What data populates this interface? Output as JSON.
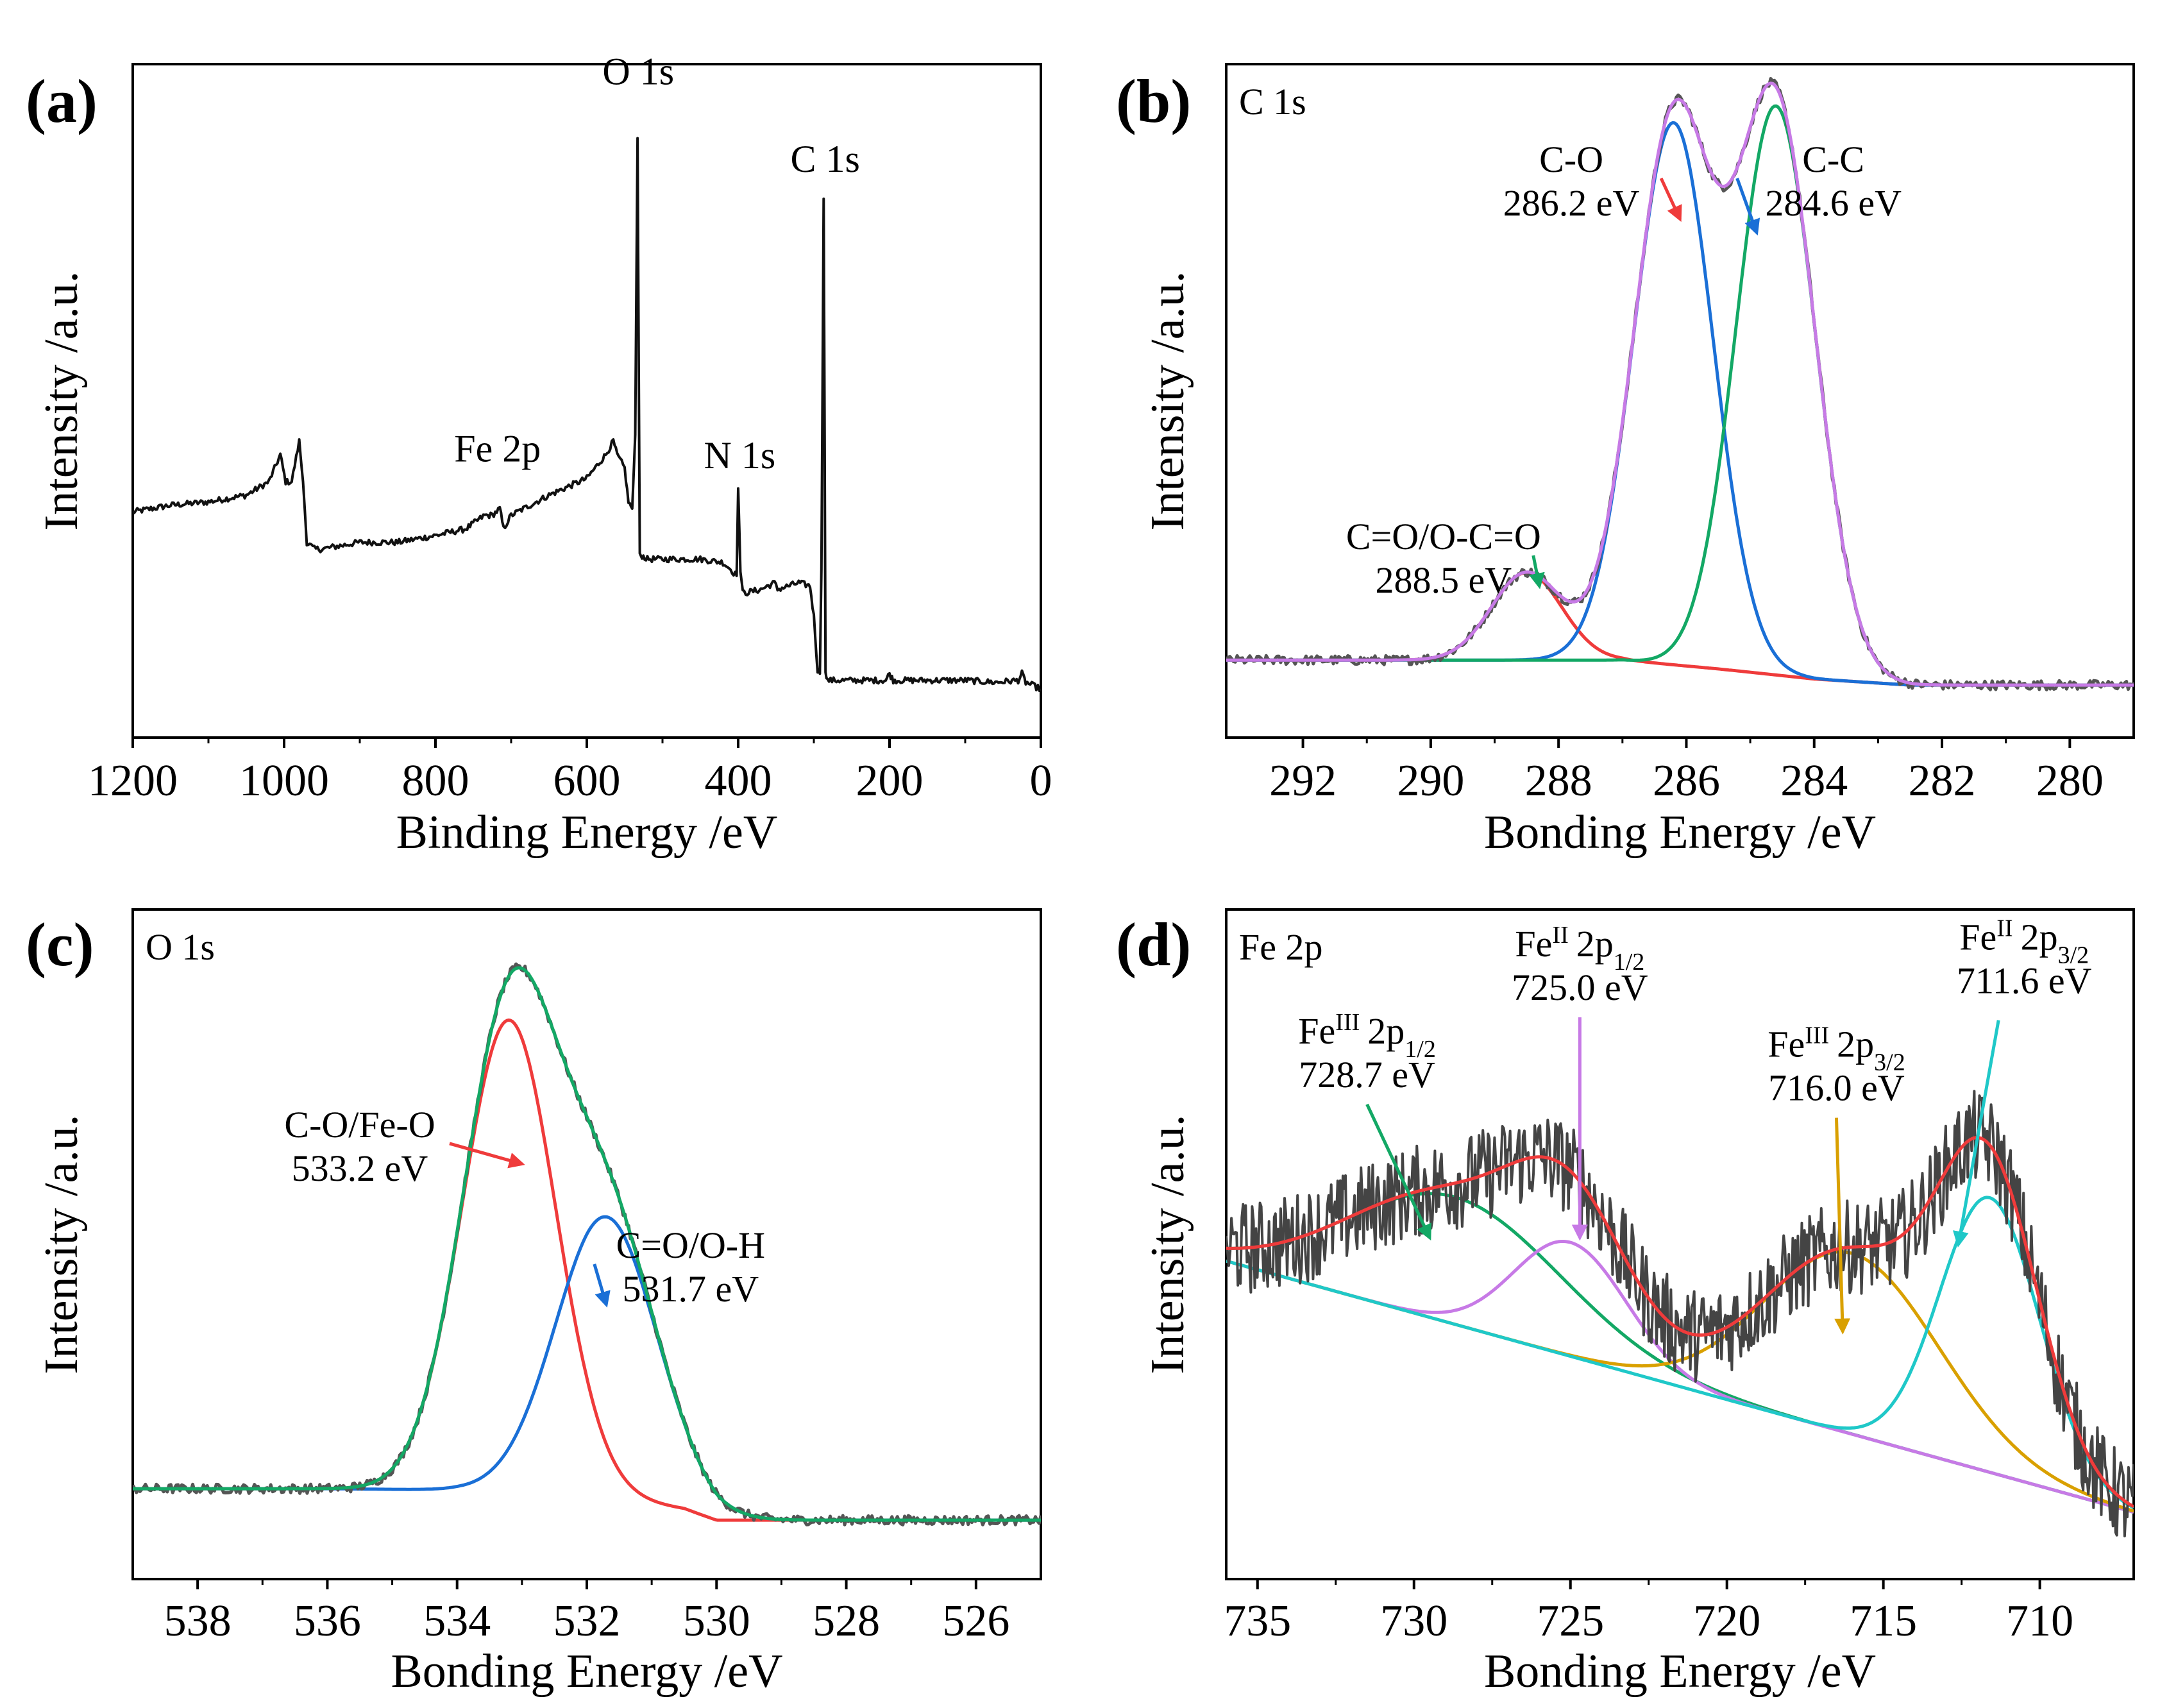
{
  "chart_data": [
    {
      "id": "a",
      "type": "line",
      "panel_label": "(a)",
      "title": "",
      "xlabel": "Binding Energy /eV",
      "ylabel": "Intensity /a.u.",
      "xlim": [
        1200,
        0
      ],
      "ylim": [
        0,
        100
      ],
      "x_reversed": true,
      "xticks": [
        1200,
        1000,
        800,
        600,
        400,
        200,
        0
      ],
      "grid": false,
      "legend": "none",
      "series": [
        {
          "name": "Survey",
          "color": "#111111",
          "x": [
            1200,
            1150,
            1100,
            1050,
            1020,
            1005,
            998,
            990,
            980,
            975,
            970,
            960,
            950,
            900,
            850,
            800,
            760,
            735,
            725,
            715,
            710,
            700,
            650,
            600,
            575,
            565,
            560,
            550,
            545,
            540,
            536,
            533,
            530,
            527,
            520,
            500,
            450,
            420,
            410,
            402,
            400,
            397,
            394,
            390,
            370,
            352,
            348,
            320,
            305,
            300,
            295,
            292,
            290,
            287,
            284.6,
            282,
            278,
            270,
            250,
            205,
            200,
            195,
            150,
            100,
            60,
            30,
            25,
            20,
            0
          ],
          "y": [
            33.5,
            34.5,
            35,
            36,
            38,
            42,
            38,
            38,
            44,
            38,
            29,
            28,
            28,
            29,
            29,
            30,
            31,
            33,
            33,
            34,
            31,
            33,
            36,
            38.5,
            42,
            44,
            42,
            40,
            35,
            34,
            45,
            89,
            27,
            27,
            26.5,
            26.5,
            26.5,
            26,
            25,
            24,
            37,
            25,
            21.5,
            21.5,
            22,
            23,
            22,
            23,
            22.5,
            18,
            10,
            9.5,
            25,
            80,
            10,
            8.5,
            8.5,
            8.5,
            8.5,
            8.5,
            9.5,
            8.5,
            8.5,
            8.5,
            8.2,
            8.5,
            9.5,
            8.2,
            7.2
          ]
        }
      ],
      "annotations": [
        {
          "text": "O 1s",
          "x": 532,
          "y": 97
        },
        {
          "text": "C 1s",
          "x": 285,
          "y": 84
        },
        {
          "text": "Fe 2p",
          "x": 718,
          "y": 41
        },
        {
          "text": "N 1s",
          "x": 398,
          "y": 40
        }
      ]
    },
    {
      "id": "b",
      "type": "line",
      "panel_label": "(b)",
      "title": "C 1s",
      "xlabel": "Bonding Energy /eV",
      "ylabel": "Intensity /a.u.",
      "xlim": [
        293.2,
        279
      ],
      "ylim": [
        0,
        100
      ],
      "x_reversed": true,
      "xticks": [
        292,
        290,
        288,
        286,
        284,
        282,
        280
      ],
      "grid": false,
      "legend": "none",
      "baseline": {
        "x": [
          293.2,
          289,
          287,
          285.5,
          284,
          282.5,
          279
        ],
        "y": [
          11.5,
          11.5,
          11.5,
          10.2,
          8.7,
          7.8,
          7.8
        ]
      },
      "peaks": [
        {
          "name": "C=O/O-C=O",
          "center": 288.5,
          "height": 13,
          "sigma": 0.55,
          "color": "#ef3b3b"
        },
        {
          "name": "C-O",
          "center": 286.2,
          "height": 80.5,
          "sigma": 0.62,
          "color": "#1a6fd6"
        },
        {
          "name": "C-C",
          "center": 284.6,
          "height": 84.5,
          "sigma": 0.62,
          "color": "#13a865"
        }
      ],
      "envelope_color": "#c77ae6",
      "raw_color": "#555555",
      "series": [
        {
          "name": "C=O/O-C=O",
          "color": "#ef3b3b"
        },
        {
          "name": "C-O",
          "color": "#1a6fd6"
        },
        {
          "name": "C-C",
          "color": "#13a865"
        },
        {
          "name": "Fit envelope",
          "color": "#c77ae6"
        },
        {
          "name": "Raw data",
          "color": "#555555"
        }
      ],
      "annotations": [
        {
          "text": "C-O",
          "line2": "286.2 eV",
          "x": 287.8,
          "y": 84,
          "arrow_to": [
            286.1,
            77
          ]
        },
        {
          "text": "C-C",
          "line2": "284.6 eV",
          "x": 283.7,
          "y": 84,
          "arrow_to": [
            284.9,
            75
          ]
        },
        {
          "text": "C=O/O-C=O",
          "line2": "288.5 eV",
          "x": 289.8,
          "y": 28,
          "arrow_to": [
            288.3,
            22.5
          ]
        }
      ]
    },
    {
      "id": "c",
      "type": "line",
      "panel_label": "(c)",
      "title": "O 1s",
      "xlabel": "Bonding Energy /eV",
      "ylabel": "Intensity /a.u.",
      "xlim": [
        539,
        525
      ],
      "ylim": [
        0,
        100
      ],
      "x_reversed": true,
      "xticks": [
        538,
        536,
        534,
        532,
        530,
        528,
        526
      ],
      "grid": false,
      "legend": "none",
      "baseline": {
        "x": [
          539,
          536,
          534,
          532,
          530.5,
          530,
          525
        ],
        "y": [
          13.5,
          13.5,
          13.3,
          12.5,
          10.5,
          8.8,
          8.8
        ]
      },
      "peaks": [
        {
          "name": "C-O/Fe-O",
          "center": 533.2,
          "height": 70.5,
          "sigma": 0.72,
          "color": "#ef3b3b"
        },
        {
          "name": "C=O/O-H",
          "center": 531.7,
          "height": 42,
          "sigma": 0.78,
          "color": "#1a6fd6"
        }
      ],
      "envelope_color": "#13a865",
      "raw_color": "#555555",
      "series": [
        {
          "name": "C-O/Fe-O",
          "color": "#ef3b3b"
        },
        {
          "name": "C=O/O-H",
          "color": "#1a6fd6"
        },
        {
          "name": "Fit envelope",
          "color": "#13a865"
        },
        {
          "name": "Raw data",
          "color": "#555555"
        }
      ],
      "annotations": [
        {
          "text": "C-O/Fe-O",
          "line2": "533.2 eV",
          "x": 535.5,
          "y": 66,
          "arrow_to": [
            533.0,
            62
          ]
        },
        {
          "text": "C=O/O-H",
          "line2": "531.7 eV",
          "x": 530.4,
          "y": 48,
          "arrow_to": [
            531.7,
            41
          ]
        }
      ]
    },
    {
      "id": "d",
      "type": "line",
      "panel_label": "(d)",
      "title": "Fe 2p",
      "xlabel": "Bonding Energy /eV",
      "ylabel": "Intensity /a.u.",
      "xlim": [
        736,
        707
      ],
      "ylim": [
        0,
        100
      ],
      "x_reversed": true,
      "xticks": [
        735,
        730,
        725,
        720,
        715,
        710
      ],
      "grid": false,
      "legend": "none",
      "baseline": {
        "x": [
          736,
          707
        ],
        "y": [
          47.5,
          10
        ]
      },
      "peaks": [
        {
          "name": "Fe(III) 2p1/2",
          "center": 728.7,
          "height": 19,
          "sigma": 3.4,
          "color": "#13a865"
        },
        {
          "name": "Fe(II) 2p1/2",
          "center": 725.0,
          "height": 17,
          "sigma": 1.8,
          "color": "#c77ae6"
        },
        {
          "name": "Fe(III) 2p3/2",
          "center": 716.0,
          "height": 27,
          "sigma": 2.8,
          "color": "#d9a000"
        },
        {
          "name": "Fe(II) 2p3/2",
          "center": 711.6,
          "height": 41,
          "sigma": 1.6,
          "color": "#1fc8c8"
        }
      ],
      "envelope_color": "#ef3b3b",
      "raw_color": "#444444",
      "series": [
        {
          "name": "Fe(III) 2p1/2",
          "color": "#13a865"
        },
        {
          "name": "Fe(II) 2p1/2",
          "color": "#c77ae6"
        },
        {
          "name": "Fe(III) 2p3/2",
          "color": "#d9a000"
        },
        {
          "name": "Fe(II) 2p3/2",
          "color": "#1fc8c8"
        },
        {
          "name": "Fit envelope",
          "color": "#ef3b3b"
        },
        {
          "name": "Raw data",
          "color": "#444444"
        }
      ],
      "annotations": [
        {
          "base": "Fe",
          "sup": "III",
          "orb": "2p",
          "sub": "1/2",
          "line2": "728.7 eV",
          "x": 731.5,
          "y": 80,
          "arrow_to": [
            729.5,
            51
          ]
        },
        {
          "base": "Fe",
          "sup": "II",
          "orb": "2p",
          "sub": "1/2",
          "line2": "725.0 eV",
          "x": 724.7,
          "y": 93,
          "arrow_to": [
            724.7,
            51
          ]
        },
        {
          "base": "Fe",
          "sup": "III",
          "orb": "2p",
          "sub": "3/2",
          "line2": "716.0 eV",
          "x": 716.5,
          "y": 78,
          "arrow_to": [
            716.3,
            37
          ]
        },
        {
          "base": "Fe",
          "sup": "II",
          "orb": "2p",
          "sub": "3/2",
          "line2": "711.6 eV",
          "x": 710.5,
          "y": 94,
          "arrow_to": [
            712.6,
            50
          ]
        }
      ]
    }
  ]
}
